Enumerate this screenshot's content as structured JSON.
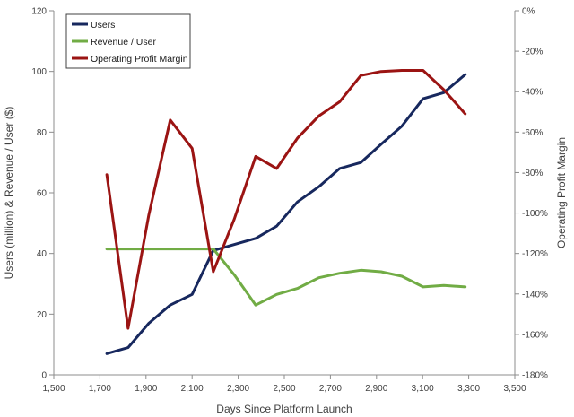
{
  "chart_data": {
    "type": "line",
    "xlabel": "Days Since Platform Launch",
    "ylabel": "Users (million) & Revenue / User ($)",
    "y2label": "Operating Profit Margin",
    "xlim": [
      1500,
      3500
    ],
    "xticks": [
      1500,
      1700,
      1900,
      2100,
      2300,
      2500,
      2700,
      2900,
      3100,
      3300,
      3500
    ],
    "xtick_labels": [
      "1,500",
      "1,700",
      "1,900",
      "2,100",
      "2,300",
      "2,500",
      "2,700",
      "2,900",
      "3,100",
      "3,300",
      "3,500"
    ],
    "ylim": [
      0,
      120
    ],
    "yticks": [
      0,
      20,
      40,
      60,
      80,
      100,
      120
    ],
    "ytick_labels": [
      "0",
      "20",
      "40",
      "60",
      "80",
      "100",
      "120"
    ],
    "y2lim": [
      -180,
      0
    ],
    "y2ticks": [
      0,
      -20,
      -40,
      -60,
      -80,
      -100,
      -120,
      -140,
      -160,
      -180
    ],
    "y2tick_labels": [
      "0%",
      "-20%",
      "-40%",
      "-60%",
      "-80%",
      "-100%",
      "-120%",
      "-140%",
      "-160%",
      "-180%"
    ],
    "grid": false,
    "legend_position": "top-left",
    "series": [
      {
        "name": "Users",
        "axis": "left",
        "color": "#17285e",
        "x": [
          1730,
          1822,
          1912,
          2005,
          2100,
          2192,
          2376,
          2467,
          2557,
          2650,
          2740,
          2832,
          2920,
          3010,
          3102,
          3192,
          3285
        ],
        "y": [
          7,
          9,
          17,
          23,
          26.5,
          41,
          45,
          49,
          57,
          62,
          68,
          70,
          76,
          82,
          91,
          93,
          99
        ]
      },
      {
        "name": "Revenue / User",
        "axis": "left",
        "color": "#71ac45",
        "x": [
          1730,
          1822,
          1912,
          2005,
          2100,
          2192,
          2283,
          2376,
          2467,
          2557,
          2650,
          2740,
          2832,
          2920,
          3010,
          3102,
          3192,
          3285
        ],
        "y": [
          41.5,
          41.5,
          41.5,
          41.5,
          41.5,
          41.5,
          33,
          23,
          26.5,
          28.5,
          32,
          33.5,
          34.5,
          34,
          32.5,
          29,
          29.5,
          29
        ]
      },
      {
        "name": "Operating Profit Margin",
        "axis": "right",
        "color": "#9b1413",
        "x": [
          1730,
          1822,
          1912,
          2005,
          2100,
          2192,
          2283,
          2376,
          2467,
          2557,
          2650,
          2740,
          2832,
          2920,
          3010,
          3102,
          3192,
          3285
        ],
        "y": [
          -81,
          -157,
          -101,
          -54,
          -68,
          -129,
          -103,
          -72,
          -78,
          -63,
          -52,
          -45,
          -32,
          -30,
          -29.5,
          -29.5,
          -39,
          -51
        ]
      }
    ]
  }
}
